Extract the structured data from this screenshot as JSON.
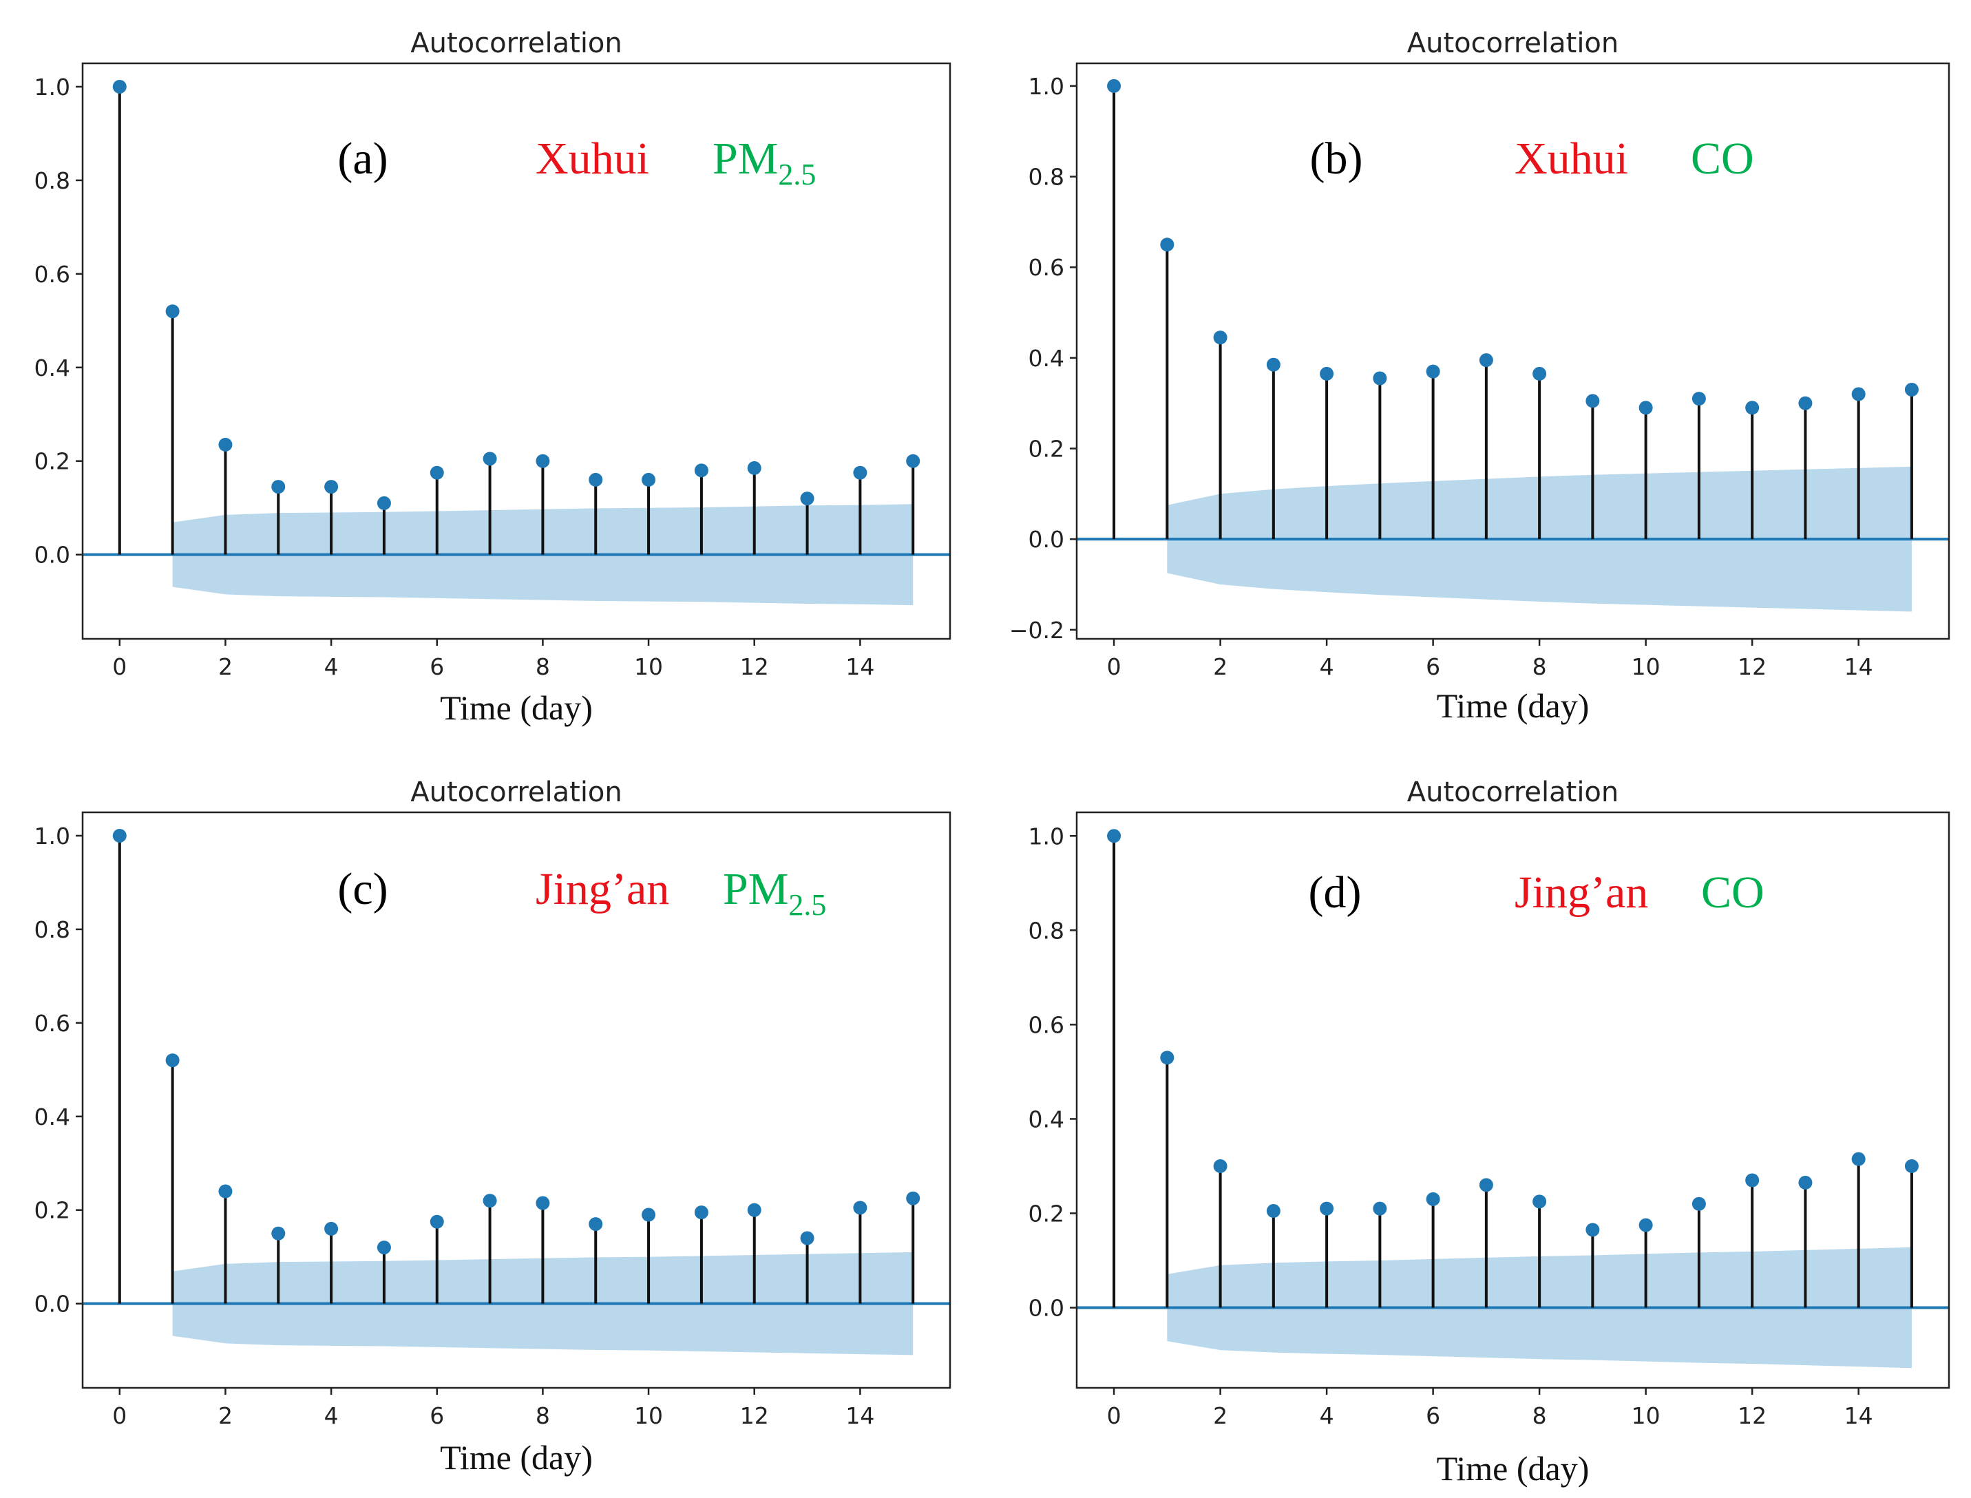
{
  "chart_data": [
    {
      "type": "stem",
      "title": "Autocorrelation",
      "xlabel": "Time (day)",
      "panel_label": "(a)",
      "location": "Xuhui",
      "pollutant": "PM",
      "pollutant_sub": "2.5",
      "colors": {
        "location": "#e8121b",
        "pollutant": "#00b050",
        "marker": "#1f77b4",
        "band": "#b9d8ec",
        "stem": "#111111"
      },
      "xlim": [
        -0.7,
        15.7
      ],
      "ylim": [
        -0.18,
        1.05
      ],
      "xticks": [
        0,
        2,
        4,
        6,
        8,
        10,
        12,
        14
      ],
      "xtick_labels": [
        "0",
        "2",
        "4",
        "6",
        "8",
        "10",
        "12",
        "14"
      ],
      "yticks": [
        0.0,
        0.2,
        0.4,
        0.6,
        0.8,
        1.0
      ],
      "ytick_labels": [
        "0.0",
        "0.2",
        "0.4",
        "0.6",
        "0.8",
        "1.0"
      ],
      "lags": [
        0,
        1,
        2,
        3,
        4,
        5,
        6,
        7,
        8,
        9,
        10,
        11,
        12,
        13,
        14,
        15
      ],
      "values": [
        1.0,
        0.52,
        0.235,
        0.145,
        0.145,
        0.11,
        0.175,
        0.205,
        0.2,
        0.16,
        0.16,
        0.18,
        0.185,
        0.12,
        0.175,
        0.2
      ],
      "confidence_band": [
        0.069,
        0.085,
        0.089,
        0.09,
        0.091,
        0.093,
        0.095,
        0.097,
        0.099,
        0.1,
        0.101,
        0.103,
        0.105,
        0.106,
        0.108
      ]
    },
    {
      "type": "stem",
      "title": "Autocorrelation",
      "xlabel": "Time (day)",
      "panel_label": "(b)",
      "location": "Xuhui",
      "pollutant": "CO",
      "pollutant_sub": "",
      "colors": {
        "location": "#e8121b",
        "pollutant": "#00b050",
        "marker": "#1f77b4",
        "band": "#b9d8ec",
        "stem": "#111111"
      },
      "xlim": [
        -0.7,
        15.7
      ],
      "ylim": [
        -0.22,
        1.05
      ],
      "xticks": [
        0,
        2,
        4,
        6,
        8,
        10,
        12,
        14
      ],
      "xtick_labels": [
        "0",
        "2",
        "4",
        "6",
        "8",
        "10",
        "12",
        "14"
      ],
      "yticks": [
        -0.2,
        0.0,
        0.2,
        0.4,
        0.6,
        0.8,
        1.0
      ],
      "ytick_labels": [
        "−0.2",
        "0.0",
        "0.2",
        "0.4",
        "0.6",
        "0.8",
        "1.0"
      ],
      "lags": [
        0,
        1,
        2,
        3,
        4,
        5,
        6,
        7,
        8,
        9,
        10,
        11,
        12,
        13,
        14,
        15
      ],
      "values": [
        1.0,
        0.65,
        0.445,
        0.385,
        0.365,
        0.355,
        0.37,
        0.395,
        0.365,
        0.305,
        0.29,
        0.31,
        0.29,
        0.3,
        0.32,
        0.33
      ],
      "confidence_band": [
        0.075,
        0.1,
        0.11,
        0.117,
        0.123,
        0.128,
        0.133,
        0.138,
        0.142,
        0.145,
        0.148,
        0.151,
        0.154,
        0.157,
        0.16
      ]
    },
    {
      "type": "stem",
      "title": "Autocorrelation",
      "xlabel": "Time (day)",
      "panel_label": "(c)",
      "location": "Jing’an",
      "pollutant": "PM",
      "pollutant_sub": "2.5",
      "colors": {
        "location": "#e8121b",
        "pollutant": "#00b050",
        "marker": "#1f77b4",
        "band": "#b9d8ec",
        "stem": "#111111"
      },
      "xlim": [
        -0.7,
        15.7
      ],
      "ylim": [
        -0.18,
        1.05
      ],
      "xticks": [
        0,
        2,
        4,
        6,
        8,
        10,
        12,
        14
      ],
      "xtick_labels": [
        "0",
        "2",
        "4",
        "6",
        "8",
        "10",
        "12",
        "14"
      ],
      "yticks": [
        0.0,
        0.2,
        0.4,
        0.6,
        0.8,
        1.0
      ],
      "ytick_labels": [
        "0.0",
        "0.2",
        "0.4",
        "0.6",
        "0.8",
        "1.0"
      ],
      "lags": [
        0,
        1,
        2,
        3,
        4,
        5,
        6,
        7,
        8,
        9,
        10,
        11,
        12,
        13,
        14,
        15
      ],
      "values": [
        1.0,
        0.52,
        0.24,
        0.15,
        0.16,
        0.12,
        0.175,
        0.22,
        0.215,
        0.17,
        0.19,
        0.195,
        0.2,
        0.14,
        0.205,
        0.225
      ],
      "confidence_band": [
        0.069,
        0.085,
        0.089,
        0.09,
        0.091,
        0.093,
        0.095,
        0.097,
        0.099,
        0.1,
        0.102,
        0.104,
        0.106,
        0.108,
        0.11
      ]
    },
    {
      "type": "stem",
      "title": "Autocorrelation",
      "xlabel": "Time (day)",
      "panel_label": "(d)",
      "location": "Jing’an",
      "pollutant": "CO",
      "pollutant_sub": "",
      "colors": {
        "location": "#e8121b",
        "pollutant": "#00b050",
        "marker": "#1f77b4",
        "band": "#b9d8ec",
        "stem": "#111111"
      },
      "xlim": [
        -0.7,
        15.7
      ],
      "ylim": [
        -0.17,
        1.05
      ],
      "xticks": [
        0,
        2,
        4,
        6,
        8,
        10,
        12,
        14
      ],
      "xtick_labels": [
        "0",
        "2",
        "4",
        "6",
        "8",
        "10",
        "12",
        "14"
      ],
      "yticks": [
        0.0,
        0.2,
        0.4,
        0.6,
        0.8,
        1.0
      ],
      "ytick_labels": [
        "0.0",
        "0.2",
        "0.4",
        "0.6",
        "0.8",
        "1.0"
      ],
      "lags": [
        0,
        1,
        2,
        3,
        4,
        5,
        6,
        7,
        8,
        9,
        10,
        11,
        12,
        13,
        14,
        15
      ],
      "values": [
        1.0,
        0.53,
        0.3,
        0.205,
        0.21,
        0.21,
        0.23,
        0.26,
        0.225,
        0.165,
        0.175,
        0.22,
        0.27,
        0.265,
        0.315,
        0.3
      ],
      "confidence_band": [
        0.071,
        0.09,
        0.095,
        0.098,
        0.1,
        0.103,
        0.106,
        0.109,
        0.111,
        0.114,
        0.117,
        0.119,
        0.122,
        0.125,
        0.128
      ]
    }
  ]
}
